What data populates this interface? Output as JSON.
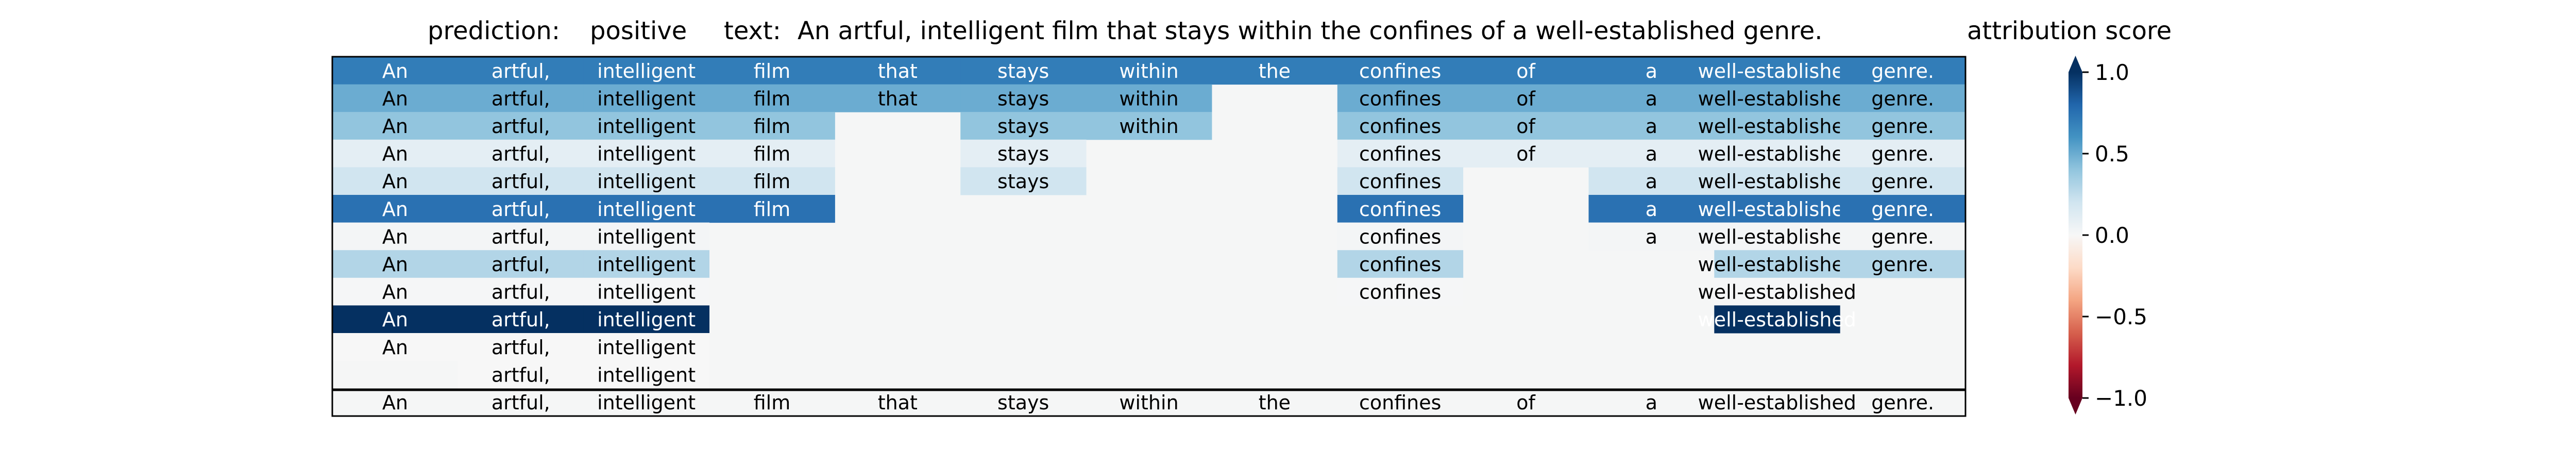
{
  "header": {
    "prediction_label": "prediction:",
    "prediction_value": "positive",
    "text_label": "text:",
    "text_value": "An artful, intelligent film that stays within the confines of a well-established genre.",
    "colorbar_title": "attribution score"
  },
  "chart_data": {
    "type": "heatmap",
    "title": "",
    "xlabel": "",
    "ylabel": "",
    "tokens": [
      "An",
      "artful,",
      "intelligent",
      "film",
      "that",
      "stays",
      "within",
      "the",
      "confines",
      "of",
      "a",
      "well-established",
      "genre."
    ],
    "rows": [
      [
        0.7,
        0.7,
        0.7,
        0.7,
        0.7,
        0.7,
        0.7,
        0.7,
        0.7,
        0.7,
        0.7,
        0.7,
        0.7
      ],
      [
        0.5,
        0.5,
        0.5,
        0.5,
        0.5,
        0.5,
        0.5,
        null,
        0.5,
        0.5,
        0.5,
        0.5,
        0.5
      ],
      [
        0.4,
        0.4,
        0.4,
        0.4,
        null,
        0.4,
        0.4,
        null,
        0.4,
        0.4,
        0.4,
        0.4,
        0.4
      ],
      [
        0.1,
        0.1,
        0.1,
        0.1,
        null,
        0.1,
        null,
        null,
        0.1,
        0.1,
        0.1,
        0.1,
        0.1
      ],
      [
        0.2,
        0.2,
        0.2,
        0.2,
        null,
        0.2,
        null,
        null,
        0.2,
        null,
        0.2,
        0.2,
        0.2
      ],
      [
        0.75,
        0.75,
        0.75,
        0.75,
        null,
        null,
        null,
        null,
        0.75,
        null,
        0.75,
        0.75,
        0.75
      ],
      [
        0.02,
        0.02,
        0.02,
        null,
        null,
        null,
        null,
        null,
        0.02,
        null,
        0.02,
        0.02,
        0.02
      ],
      [
        0.3,
        0.3,
        0.3,
        null,
        null,
        null,
        null,
        null,
        0.3,
        null,
        null,
        0.3,
        0.3
      ],
      [
        0.01,
        0.01,
        0.01,
        null,
        null,
        null,
        null,
        null,
        0.01,
        null,
        null,
        0.01,
        null
      ],
      [
        1.0,
        1.0,
        1.0,
        null,
        null,
        null,
        null,
        null,
        null,
        null,
        null,
        1.0,
        null
      ],
      [
        0.0,
        0.0,
        0.0,
        null,
        null,
        null,
        null,
        null,
        null,
        null,
        null,
        null,
        null
      ],
      [
        null,
        0.0,
        0.0,
        null,
        null,
        null,
        null,
        null,
        null,
        null,
        null,
        null,
        null
      ],
      [
        null,
        null,
        null,
        null,
        null,
        null,
        null,
        null,
        null,
        null,
        null,
        null,
        null
      ]
    ],
    "bottom_row_tokens": [
      "An",
      "artful,",
      "intelligent",
      "film",
      "that",
      "stays",
      "within",
      "the",
      "confines",
      "of",
      "a",
      "well-established",
      "genre."
    ],
    "colorbar": {
      "min": -1.0,
      "max": 1.0,
      "ticks": [
        1.0,
        0.5,
        0.0,
        -0.5,
        -1.0
      ],
      "tick_labels": [
        "1.0",
        "0.5",
        "0.0",
        "−0.5",
        "−1.0"
      ],
      "colormap": "RdBu"
    },
    "colors": {
      "empty_cell": "#f5f6f6",
      "frame": "#000000"
    }
  }
}
